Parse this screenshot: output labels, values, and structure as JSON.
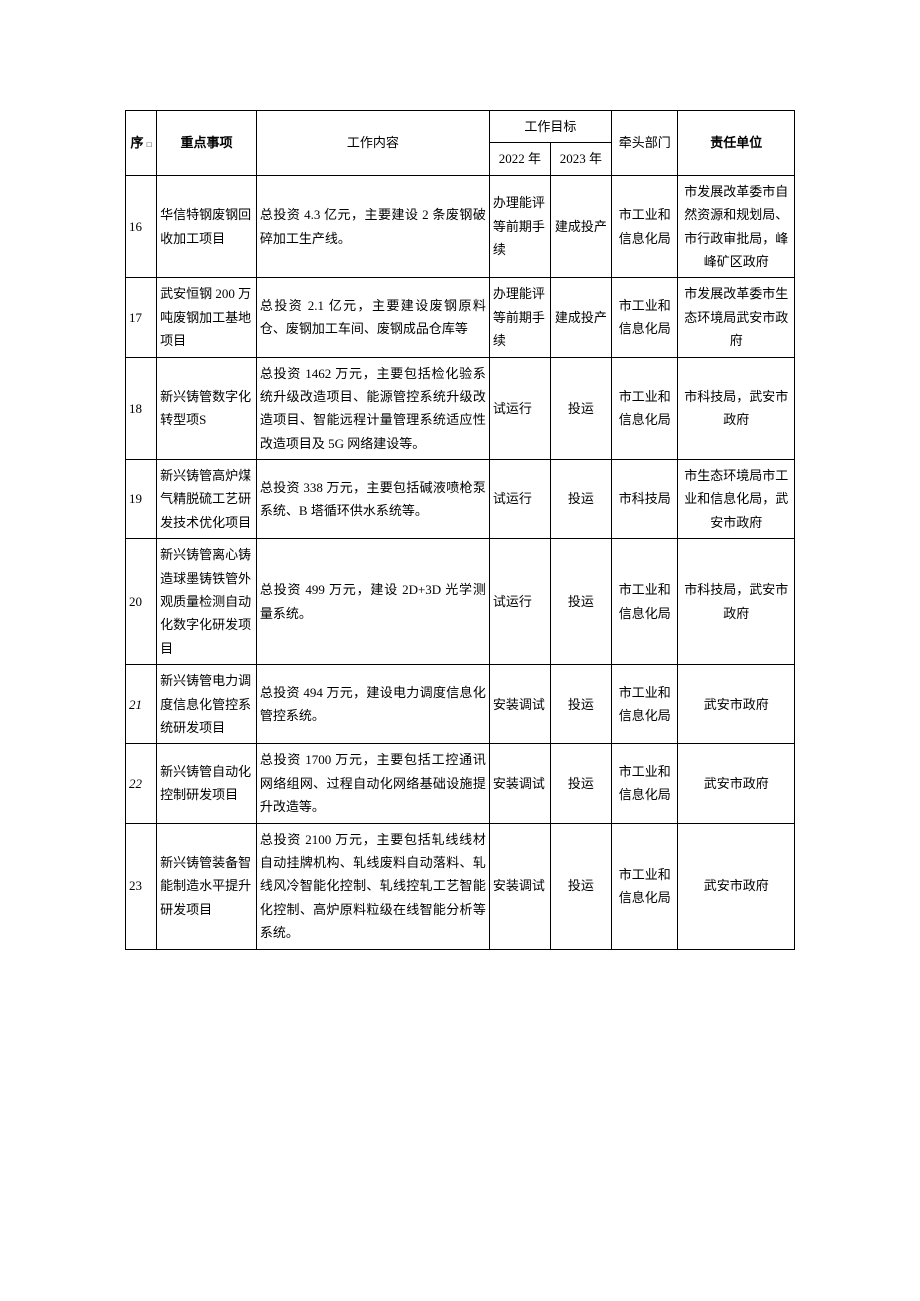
{
  "table": {
    "headers": {
      "seq": "序",
      "seq_sub": "□",
      "item": "重点事项",
      "content": "工作内容",
      "goal": "工作目标",
      "year2022": "2022 年",
      "year2023": "2023 年",
      "lead": "牵头部门",
      "resp": "责任单位"
    },
    "rows": [
      {
        "seq": "16",
        "item": "华信特钢废钢回收加工项目",
        "content": "总投资 4.3 亿元，主要建设 2 条废钢破碎加工生产线。",
        "y2022": "办理能评等前期手续",
        "y2023": "建成投产",
        "lead": "市工业和信息化局",
        "resp": "市发展改革委市自然资源和规划局、市行政审批局，峰峰矿区政府"
      },
      {
        "seq": "17",
        "item": "武安恒钢 200 万吨废钢加工基地项目",
        "content": "总投资 2.1 亿元，主要建设废钢原料仓、废钢加工车间、废钢成品仓库等",
        "y2022": "办理能评等前期手续",
        "y2023": "建成投产",
        "lead": "市工业和信息化局",
        "resp": "市发展改革委市生态环境局武安市政府"
      },
      {
        "seq": "18",
        "item": "新兴铸管数字化转型项S",
        "content": "总投资 1462 万元，主要包括检化验系统升级改造项目、能源管控系统升级改造项目、智能远程计量管理系统适应性改造项目及 5G 网络建设等。",
        "y2022": "试运行",
        "y2023": "投运",
        "lead": "市工业和信息化局",
        "resp": "市科技局，武安市政府"
      },
      {
        "seq": "19",
        "item": "新兴铸管高炉煤气精脱硫工艺研发技术优化项目",
        "content": "总投资 338 万元，主要包括碱液喷枪泵系统、B 塔循环供水系统等。",
        "y2022": "试运行",
        "y2023": "投运",
        "lead": "市科技局",
        "resp": "市生态环境局市工业和信息化局，武安市政府"
      },
      {
        "seq": "20",
        "item": "新兴铸管离心铸造球墨铸铁管外观质量检测自动化数字化研发项目",
        "content": "总投资 499 万元，建设 2D+3D 光学测量系统。",
        "y2022": "试运行",
        "y2023": "投运",
        "lead": "市工业和信息化局",
        "resp": "市科技局，武安市政府"
      },
      {
        "seq": "21",
        "item": "新兴铸管电力调度信息化管控系统研发项目",
        "content": "总投资 494 万元，建设电力调度信息化管控系统。",
        "y2022": "安装调试",
        "y2023": "投运",
        "lead": "市工业和信息化局",
        "resp": "武安市政府",
        "seq_italic": true
      },
      {
        "seq": "22",
        "item": "新兴铸管自动化控制研发项目",
        "content": "总投资 1700 万元，主要包括工控通讯网络组网、过程自动化网络基础设施提升改造等。",
        "y2022": "安装调试",
        "y2023": "投运",
        "lead": "市工业和信息化局",
        "resp": "武安市政府",
        "seq_italic": true
      },
      {
        "seq": "23",
        "item": "新兴铸管装备智能制造水平提升研发项目",
        "content": "总投资 2100 万元，主要包括轧线线材自动挂牌机构、轧线废料自动落料、轧线风冷智能化控制、轧线控轧工艺智能化控制、高炉原料粒级在线智能分析等系统。",
        "y2022": "安装调试",
        "y2023": "投运",
        "lead": "市工业和信息化局",
        "resp": "武安市政府"
      }
    ]
  }
}
